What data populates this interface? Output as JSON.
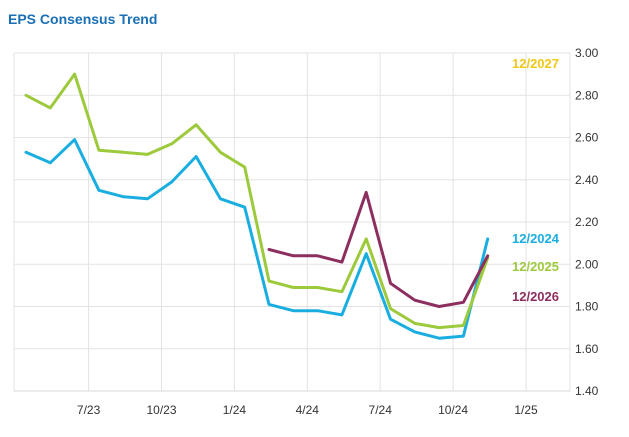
{
  "chart_data": {
    "type": "line",
    "title": "EPS Consensus Trend",
    "title_color": "#1a6fb5",
    "xlabel": "",
    "ylabel": "",
    "ylim": [
      1.4,
      3.0
    ],
    "y_ticks": [
      1.4,
      1.6,
      1.8,
      2.0,
      2.2,
      2.4,
      2.6,
      2.8,
      3.0
    ],
    "y_tick_labels": [
      "1.40",
      "1.60",
      "1.80",
      "2.00",
      "2.20",
      "2.40",
      "2.60",
      "2.80",
      "3.00"
    ],
    "x_tick_labels": [
      "7/23",
      "10/23",
      "1/24",
      "4/24",
      "7/24",
      "10/24",
      "1/25"
    ],
    "x_tick_positions": [
      2,
      5,
      8,
      11,
      14,
      17,
      20
    ],
    "grid": true,
    "series": [
      {
        "name": "12/2024",
        "color": "#1aaee0",
        "x": [
          0,
          1,
          2,
          3,
          4,
          5,
          6,
          7,
          8,
          9,
          10,
          11,
          12,
          13,
          14,
          15,
          16,
          17,
          18,
          19
        ],
        "values": [
          2.53,
          2.48,
          2.59,
          2.35,
          2.32,
          2.31,
          2.39,
          2.51,
          2.31,
          2.27,
          1.81,
          1.78,
          1.78,
          1.76,
          2.05,
          1.74,
          1.68,
          1.65,
          1.66,
          2.12
        ]
      },
      {
        "name": "12/2025",
        "color": "#9dca3c",
        "x": [
          0,
          1,
          2,
          3,
          4,
          5,
          6,
          7,
          8,
          9,
          10,
          11,
          12,
          13,
          14,
          15,
          16,
          17,
          18,
          19
        ],
        "values": [
          2.8,
          2.74,
          2.9,
          2.54,
          2.53,
          2.52,
          2.57,
          2.66,
          2.53,
          2.46,
          1.92,
          1.89,
          1.89,
          1.87,
          2.12,
          1.79,
          1.72,
          1.7,
          1.71,
          2.03
        ]
      },
      {
        "name": "12/2026",
        "color": "#8c2f5e",
        "x": [
          10,
          11,
          12,
          13,
          14,
          15,
          16,
          17,
          18,
          19
        ],
        "values": [
          2.07,
          2.04,
          2.04,
          2.01,
          2.34,
          1.91,
          1.83,
          1.8,
          1.82,
          2.04
        ]
      },
      {
        "name": "12/2027",
        "color": "#f0c818",
        "x": [],
        "values": []
      }
    ]
  }
}
